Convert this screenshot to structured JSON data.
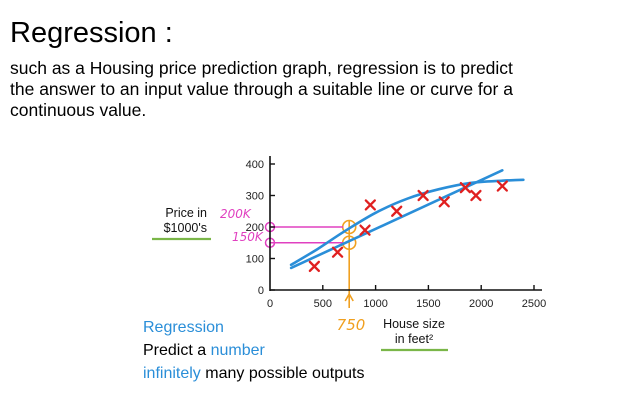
{
  "slide": {
    "title": "Regression :",
    "description": [
      "such as a Housing price prediction graph, regression is to predict",
      "the answer to an input value through a suitable line or curve for a",
      "continuous value."
    ]
  },
  "chart_data": {
    "type": "scatter",
    "title": "",
    "ylabel": [
      "Price in",
      "$1000's"
    ],
    "xlabel": [
      "House size",
      "in feet²"
    ],
    "xlim": [
      0,
      2500
    ],
    "ylim": [
      0,
      400
    ],
    "xticks": [
      500,
      1000,
      1500,
      2000,
      2500
    ],
    "yticks": [
      0,
      100,
      200,
      300,
      400
    ],
    "x_origin_label": "0",
    "grid": false,
    "points": [
      {
        "x": 420,
        "y": 75
      },
      {
        "x": 640,
        "y": 120
      },
      {
        "x": 900,
        "y": 190
      },
      {
        "x": 950,
        "y": 270
      },
      {
        "x": 1200,
        "y": 250
      },
      {
        "x": 1450,
        "y": 300
      },
      {
        "x": 1650,
        "y": 280
      },
      {
        "x": 1850,
        "y": 325
      },
      {
        "x": 1950,
        "y": 300
      },
      {
        "x": 2200,
        "y": 330
      }
    ],
    "fit_line": [
      {
        "x": 200,
        "y": 70
      },
      {
        "x": 2200,
        "y": 380
      }
    ],
    "fit_curve": [
      {
        "x": 200,
        "y": 80
      },
      {
        "x": 450,
        "y": 130
      },
      {
        "x": 700,
        "y": 185
      },
      {
        "x": 1000,
        "y": 245
      },
      {
        "x": 1300,
        "y": 290
      },
      {
        "x": 1600,
        "y": 320
      },
      {
        "x": 1900,
        "y": 340
      },
      {
        "x": 2200,
        "y": 347
      },
      {
        "x": 2400,
        "y": 350
      }
    ],
    "annotations": {
      "query_x": 750,
      "query_x_label": "750",
      "curve_value": 200,
      "curve_value_label": "200K",
      "line_value": 150,
      "line_value_label": "150K"
    },
    "colors": {
      "points": "#e02020",
      "fit": "#2a8ed8",
      "annot_orange": "#f0a020",
      "annot_magenta": "#e040c0",
      "underline": "#7ab648"
    }
  },
  "notes": {
    "line1": "Regression",
    "line2_prefix": "Predict a ",
    "line2_highlight": "number",
    "line3_highlight": "infinitely",
    "line3_rest": " many possible outputs"
  }
}
